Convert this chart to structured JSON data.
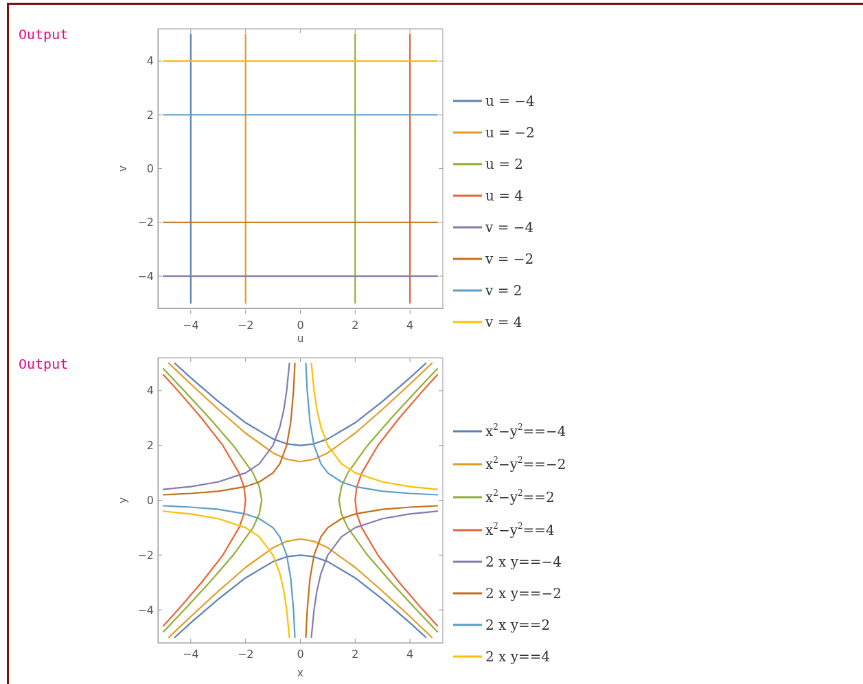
{
  "chart_data": [
    {
      "type": "line",
      "xlabel": "u",
      "ylabel": "v",
      "annotations": [
        "Output"
      ],
      "legend": "right",
      "grid": false,
      "xlim": [
        -5.2,
        5.2
      ],
      "ylim": [
        -5.2,
        5.2
      ],
      "xticks": [
        -4,
        -2,
        0,
        2,
        4
      ],
      "yticks": [
        -4,
        -2,
        0,
        2,
        4
      ],
      "series": [
        {
          "name": "u = −4",
          "color": "#5e81b5",
          "x": [
            -4,
            -4
          ],
          "values": [
            -5,
            5
          ]
        },
        {
          "name": "u = −2",
          "color": "#e19c24",
          "x": [
            -2,
            -2
          ],
          "values": [
            -5,
            5
          ]
        },
        {
          "name": "u = 2",
          "color": "#8fb032",
          "x": [
            2,
            2
          ],
          "values": [
            -5,
            5
          ]
        },
        {
          "name": "u = 4",
          "color": "#eb6235",
          "x": [
            4,
            4
          ],
          "values": [
            -5,
            5
          ]
        },
        {
          "name": "v = −4",
          "color": "#8778b3",
          "x": [
            -5,
            5
          ],
          "values": [
            -4,
            -4
          ]
        },
        {
          "name": "v = −2",
          "color": "#c56e1a",
          "x": [
            -5,
            5
          ],
          "values": [
            -2,
            -2
          ]
        },
        {
          "name": "v = 2",
          "color": "#5d9ec7",
          "x": [
            -5,
            5
          ],
          "values": [
            2,
            2
          ]
        },
        {
          "name": "v = 4",
          "color": "#ffbf00",
          "x": [
            -5,
            5
          ],
          "values": [
            4,
            4
          ]
        }
      ]
    },
    {
      "type": "line",
      "xlabel": "x",
      "ylabel": "y",
      "annotations": [
        "Output"
      ],
      "legend": "right",
      "grid": false,
      "xlim": [
        -5.2,
        5.2
      ],
      "ylim": [
        -5.2,
        5.2
      ],
      "xticks": [
        -4,
        -2,
        0,
        2,
        4
      ],
      "yticks": [
        -4,
        -2,
        0,
        2,
        4
      ],
      "series": [
        {
          "name": "x$^{2}$−y$^{2}$==−4",
          "color": "#5e81b5",
          "x": [
            -4.58,
            -4,
            -3,
            -2,
            -1,
            -0.5,
            0,
            0.5,
            1,
            2,
            3,
            4,
            4.58,
            null,
            -4.58,
            -4,
            -3,
            -2,
            -1,
            -0.5,
            0,
            0.5,
            1,
            2,
            3,
            4,
            4.58
          ],
          "values": [
            5,
            4.47,
            3.61,
            2.83,
            2.24,
            2.06,
            2,
            2.06,
            2.24,
            2.83,
            3.61,
            4.47,
            5,
            null,
            -5,
            -4.47,
            -3.61,
            -2.83,
            -2.24,
            -2.06,
            -2,
            -2.06,
            -2.24,
            -2.83,
            -3.61,
            -4.47,
            -5
          ]
        },
        {
          "name": "x$^{2}$−y$^{2}$==−2",
          "color": "#e19c24",
          "x": [
            -4.8,
            -4,
            -3,
            -2,
            -1,
            -0.5,
            0,
            0.5,
            1,
            2,
            3,
            4,
            4.8,
            null,
            -4.8,
            -4,
            -3,
            -2,
            -1,
            -0.5,
            0,
            0.5,
            1,
            2,
            3,
            4,
            4.8
          ],
          "values": [
            5,
            4.24,
            3.32,
            2.45,
            1.73,
            1.5,
            1.41,
            1.5,
            1.73,
            2.45,
            3.32,
            4.24,
            5,
            null,
            -5,
            -4.24,
            -3.32,
            -2.45,
            -1.73,
            -1.5,
            -1.41,
            -1.5,
            -1.73,
            -2.45,
            -3.32,
            -4.24,
            -5
          ]
        },
        {
          "name": "x$^{2}$−y$^{2}$==2",
          "color": "#8fb032",
          "x": [
            5,
            4.24,
            3.32,
            2.45,
            1.73,
            1.5,
            1.41,
            1.5,
            1.73,
            2.45,
            3.32,
            4.24,
            5,
            null,
            -5,
            -4.24,
            -3.32,
            -2.45,
            -1.73,
            -1.5,
            -1.41,
            -1.5,
            -1.73,
            -2.45,
            -3.32,
            -4.24,
            -5
          ],
          "values": [
            -4.8,
            -4,
            -3,
            -2,
            -1,
            -0.5,
            0,
            0.5,
            1,
            2,
            3,
            4,
            4.8,
            null,
            -4.8,
            -4,
            -3,
            -2,
            -1,
            -0.5,
            0,
            0.5,
            1,
            2,
            3,
            4,
            4.8
          ]
        },
        {
          "name": "x$^{2}$−y$^{2}$==4",
          "color": "#eb6235",
          "x": [
            5,
            4.47,
            3.61,
            2.83,
            2.24,
            2.06,
            2,
            2.06,
            2.24,
            2.83,
            3.61,
            4.47,
            5,
            null,
            -5,
            -4.47,
            -3.61,
            -2.83,
            -2.24,
            -2.06,
            -2,
            -2.06,
            -2.24,
            -2.83,
            -3.61,
            -4.47,
            -5
          ],
          "values": [
            -4.58,
            -4,
            -3,
            -2,
            -1,
            -0.5,
            0,
            0.5,
            1,
            2,
            3,
            4,
            4.58,
            null,
            -4.58,
            -4,
            -3,
            -2,
            -1,
            -0.5,
            0,
            0.5,
            1,
            2,
            3,
            4,
            4.58
          ]
        },
        {
          "name": "2 x y==−4",
          "color": "#8778b3",
          "x": [
            -5,
            -4,
            -3,
            -2,
            -1.5,
            -1,
            -0.75,
            -0.6,
            -0.5,
            -0.4,
            null,
            0.4,
            0.5,
            0.6,
            0.75,
            1,
            1.5,
            2,
            3,
            4,
            5
          ],
          "values": [
            0.4,
            0.5,
            0.67,
            1,
            1.33,
            2,
            2.67,
            3.33,
            4,
            5,
            null,
            -5,
            -4,
            -3.33,
            -2.67,
            -2,
            -1.33,
            -1,
            -0.67,
            -0.5,
            -0.4
          ]
        },
        {
          "name": "2 x y==−2",
          "color": "#c56e1a",
          "x": [
            -5,
            -4,
            -3,
            -2,
            -1.5,
            -1,
            -0.75,
            -0.5,
            -0.35,
            -0.25,
            -0.2,
            null,
            0.2,
            0.25,
            0.35,
            0.5,
            0.75,
            1,
            1.5,
            2,
            3,
            4,
            5
          ],
          "values": [
            0.2,
            0.25,
            0.33,
            0.5,
            0.67,
            1,
            1.33,
            2,
            2.86,
            4,
            5,
            null,
            -5,
            -4,
            -2.86,
            -2,
            -1.33,
            -1,
            -0.67,
            -0.5,
            -0.33,
            -0.25,
            -0.2
          ]
        },
        {
          "name": "2 x y==2",
          "color": "#5d9ec7",
          "x": [
            -5,
            -4,
            -3,
            -2,
            -1.5,
            -1,
            -0.75,
            -0.5,
            -0.35,
            -0.25,
            -0.2,
            null,
            0.2,
            0.25,
            0.35,
            0.5,
            0.75,
            1,
            1.5,
            2,
            3,
            4,
            5
          ],
          "values": [
            -0.2,
            -0.25,
            -0.33,
            -0.5,
            -0.67,
            -1,
            -1.33,
            -2,
            -2.86,
            -4,
            -5,
            null,
            5,
            4,
            2.86,
            2,
            1.33,
            1,
            0.67,
            0.5,
            0.33,
            0.25,
            0.2
          ]
        },
        {
          "name": "2 x y==4",
          "color": "#ffbf00",
          "x": [
            -5,
            -4,
            -3,
            -2,
            -1.5,
            -1,
            -0.75,
            -0.6,
            -0.5,
            -0.4,
            null,
            0.4,
            0.5,
            0.6,
            0.75,
            1,
            1.5,
            2,
            3,
            4,
            5
          ],
          "values": [
            -0.4,
            -0.5,
            -0.67,
            -1,
            -1.33,
            -2,
            -2.67,
            -3.33,
            -4,
            -5,
            null,
            5,
            4,
            3.33,
            2.67,
            2,
            1.33,
            1,
            0.67,
            0.5,
            0.4
          ]
        }
      ]
    }
  ]
}
